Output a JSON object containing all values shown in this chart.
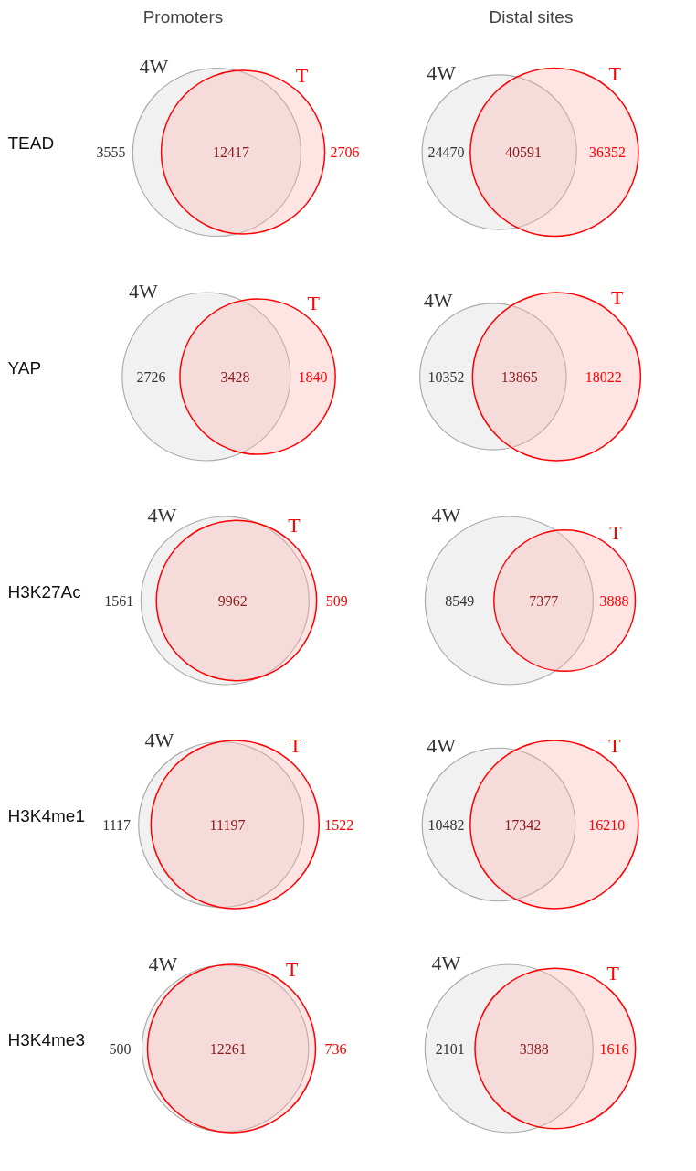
{
  "chart_data": [
    {
      "type": "other",
      "title": "Promoters",
      "ylabel": "TEAD",
      "data_labels": true,
      "categories": [
        "4W",
        null,
        "T"
      ],
      "values": [
        3555,
        12417,
        2706
      ]
    },
    {
      "type": "other",
      "title": "Distal sites",
      "data_labels": true,
      "categories": [
        "4W",
        null,
        "T"
      ],
      "values": [
        24470,
        40591,
        36352
      ]
    },
    {
      "type": "other",
      "ylabel": "YAP",
      "data_labels": true,
      "categories": [
        "4W",
        null,
        "T"
      ],
      "values": [
        2726,
        3428,
        1840
      ]
    },
    {
      "type": "other",
      "categories": [
        "4W",
        null,
        "T"
      ],
      "data_labels": true,
      "values": [
        10352,
        13865,
        18022
      ]
    },
    {
      "type": "other",
      "ylabel": "H3K27Ac",
      "data_labels": true,
      "categories": [
        "4W",
        null,
        "T"
      ],
      "values": [
        1561,
        9962,
        509
      ]
    },
    {
      "type": "other",
      "categories": [
        "4W",
        null,
        "T"
      ],
      "data_labels": true,
      "values": [
        8549,
        7377,
        3888
      ]
    },
    {
      "type": "other",
      "ylabel": "H3K4me1",
      "data_labels": true,
      "categories": [
        "4W",
        null,
        "T"
      ],
      "values": [
        1117,
        11197,
        1522
      ]
    },
    {
      "type": "other",
      "categories": [
        "4W",
        null,
        "T"
      ],
      "data_labels": true,
      "values": [
        10482,
        17342,
        16210
      ]
    },
    {
      "type": "other",
      "ylabel": "H3K4me3",
      "data_labels": true,
      "categories": [
        "4W",
        null,
        "T"
      ],
      "values": [
        500,
        12261,
        736
      ]
    },
    {
      "type": "other",
      "categories": [
        "4W",
        null,
        "T"
      ],
      "data_labels": true,
      "values": [
        2101,
        3388,
        1616
      ]
    }
  ]
}
